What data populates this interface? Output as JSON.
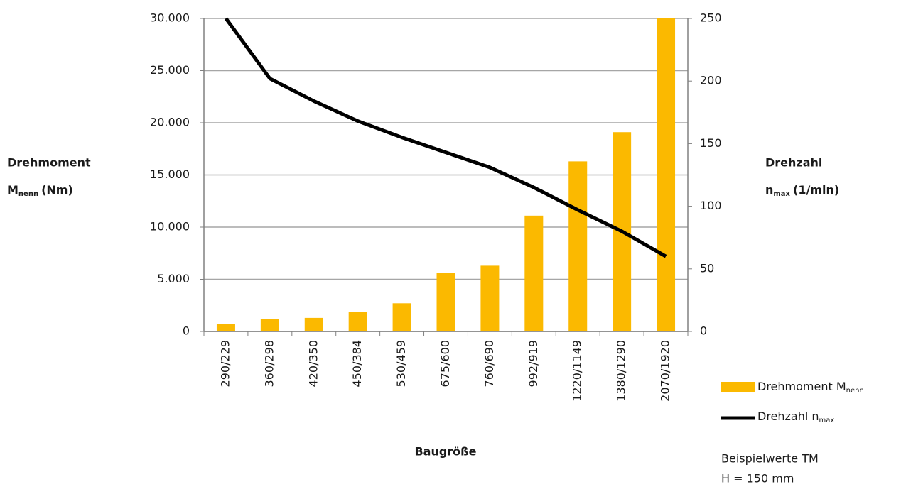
{
  "chart_data": {
    "type": "bar_line",
    "xlabel": "Baugröße",
    "ylabel": {
      "line1": "Drehmoment",
      "symbol": "M",
      "subscript": "nenn",
      "unit": "(Nm)"
    },
    "y2label": {
      "line1": "Drehzahl",
      "symbol": "n",
      "subscript": "max",
      "unit": "(1/min)"
    },
    "categories": [
      "290/229",
      "360/298",
      "420/350",
      "450/384",
      "530/459",
      "675/600",
      "760/690",
      "992/919",
      "1220/1149",
      "1380/1290",
      "2070/1920"
    ],
    "series": [
      {
        "name": "Drehmoment M",
        "name_subscript": "nenn",
        "type": "bar",
        "color": "#fbb900",
        "values": [
          700,
          1200,
          1300,
          1900,
          2700,
          5600,
          6300,
          11100,
          16300,
          19100,
          30000
        ]
      },
      {
        "name": "Drehzahl n",
        "name_subscript": "max",
        "type": "line",
        "axis": "y2",
        "color": "#000000",
        "values": [
          250,
          202,
          184,
          168,
          155,
          143,
          131,
          115,
          97,
          80,
          60
        ]
      }
    ],
    "ylim": [
      0,
      30000
    ],
    "yticks": [
      0,
      {
        "value": 5000,
        "label": "5.000"
      },
      {
        "value": 10000,
        "label": "10.000"
      },
      {
        "value": 15000,
        "label": "15.000"
      },
      {
        "value": 20000,
        "label": "20.000"
      },
      {
        "value": 25000,
        "label": "25.000"
      },
      {
        "value": 30000,
        "label": "30.000"
      }
    ],
    "y2lim": [
      0,
      250
    ],
    "y2ticks": [
      0,
      50,
      100,
      150,
      200,
      250
    ],
    "grid": true,
    "legend": "right",
    "annotations": [
      "Beispielwerte TM",
      "H = 150 mm"
    ]
  }
}
